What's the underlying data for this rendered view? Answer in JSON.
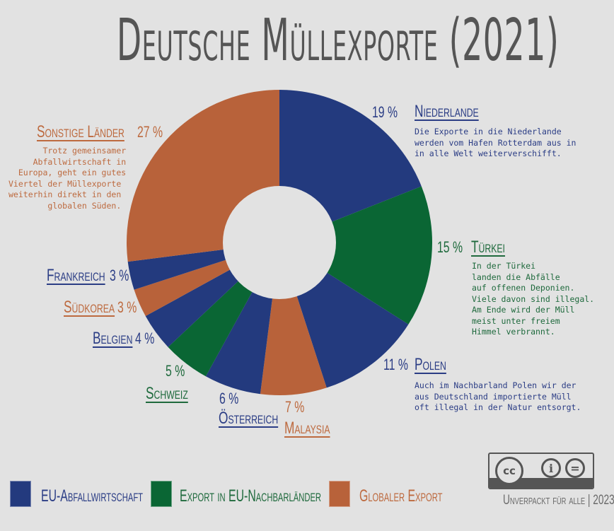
{
  "title": "Deutsche Müllexporte (2021)",
  "colors": {
    "background": "#e2e2e2",
    "eu_waste": "#233a7e",
    "eu_neighbors": "#0a6634",
    "global": "#b8623a",
    "title": "#555555"
  },
  "chart_data": {
    "type": "pie",
    "title": "Deutsche Müllexporte (2021)",
    "donut": true,
    "start_angle_deg": 0,
    "direction": "clockwise",
    "categories": [
      "Niederlande",
      "Türkei",
      "Polen",
      "Malaysia",
      "Österreich",
      "Schweiz",
      "Belgien",
      "Südkorea",
      "Frankreich",
      "Sonstige Länder"
    ],
    "values": [
      19,
      15,
      11,
      7,
      6,
      5,
      4,
      3,
      3,
      27
    ],
    "unit": "%",
    "groups": [
      "EU-Abfallwirtschaft",
      "Export in EU-Nachbarländer",
      "EU-Abfallwirtschaft",
      "Globaler Export",
      "EU-Abfallwirtschaft",
      "Export in EU-Nachbarländer",
      "EU-Abfallwirtschaft",
      "Globaler Export",
      "EU-Abfallwirtschaft",
      "Globaler Export"
    ],
    "legend": [
      {
        "label": "EU-Abfallwirtschaft",
        "color": "#233a7e"
      },
      {
        "label": "Export in EU-Nachbarländer",
        "color": "#0a6634"
      },
      {
        "label": "Globaler Export",
        "color": "#b8623a"
      }
    ],
    "legend_position": "bottom-left"
  },
  "labels": {
    "niederlande": {
      "name": "Niederlande",
      "pct": "19 %",
      "desc": "Die Exporte in die Niederlande\nwerden vom Hafen Rotterdam aus in\nin alle Welt weiterverschifft."
    },
    "tuerkei": {
      "name": "Türkei",
      "pct": "15 %",
      "desc": "In der Türkei\nlanden die Abfälle\nauf offenen Deponien.\nViele davon sind illegal.\nAm Ende wird der Müll\nmeist unter freiem\nHimmel verbrannt."
    },
    "polen": {
      "name": "Polen",
      "pct": "11 %",
      "desc": "Auch im Nachbarland Polen wir der\naus Deutschland importierte Müll\noft illegal in der Natur entsorgt."
    },
    "malaysia": {
      "name": "Malaysia",
      "pct": "7 %"
    },
    "oesterreich": {
      "name": "Österreich",
      "pct": "6 %"
    },
    "schweiz": {
      "name": "Schweiz",
      "pct": "5 %"
    },
    "belgien": {
      "name": "Belgien",
      "pct": "4 %"
    },
    "suedkorea": {
      "name": "Südkorea",
      "pct": "3 %"
    },
    "frankreich": {
      "name": "Frankreich",
      "pct": "3 %"
    },
    "sonstige": {
      "name": "Sonstige Länder",
      "pct": "27 %",
      "desc": "       Trotz gemeinsamer\n     Abfallwirtschaft in\n  Europa, geht ein gutes\nViertel der Müllexporte\nweiterhin direkt in den\n        globalen Süden."
    }
  },
  "legend": {
    "eu_waste": "EU-Abfallwirtschaft",
    "eu_neighbors": "Export in EU-Nachbarländer",
    "global": "Globaler Export"
  },
  "license": {
    "cc": "cc",
    "by": "i",
    "nd": "=",
    "credit": "Unverpackt für alle | 2023"
  }
}
